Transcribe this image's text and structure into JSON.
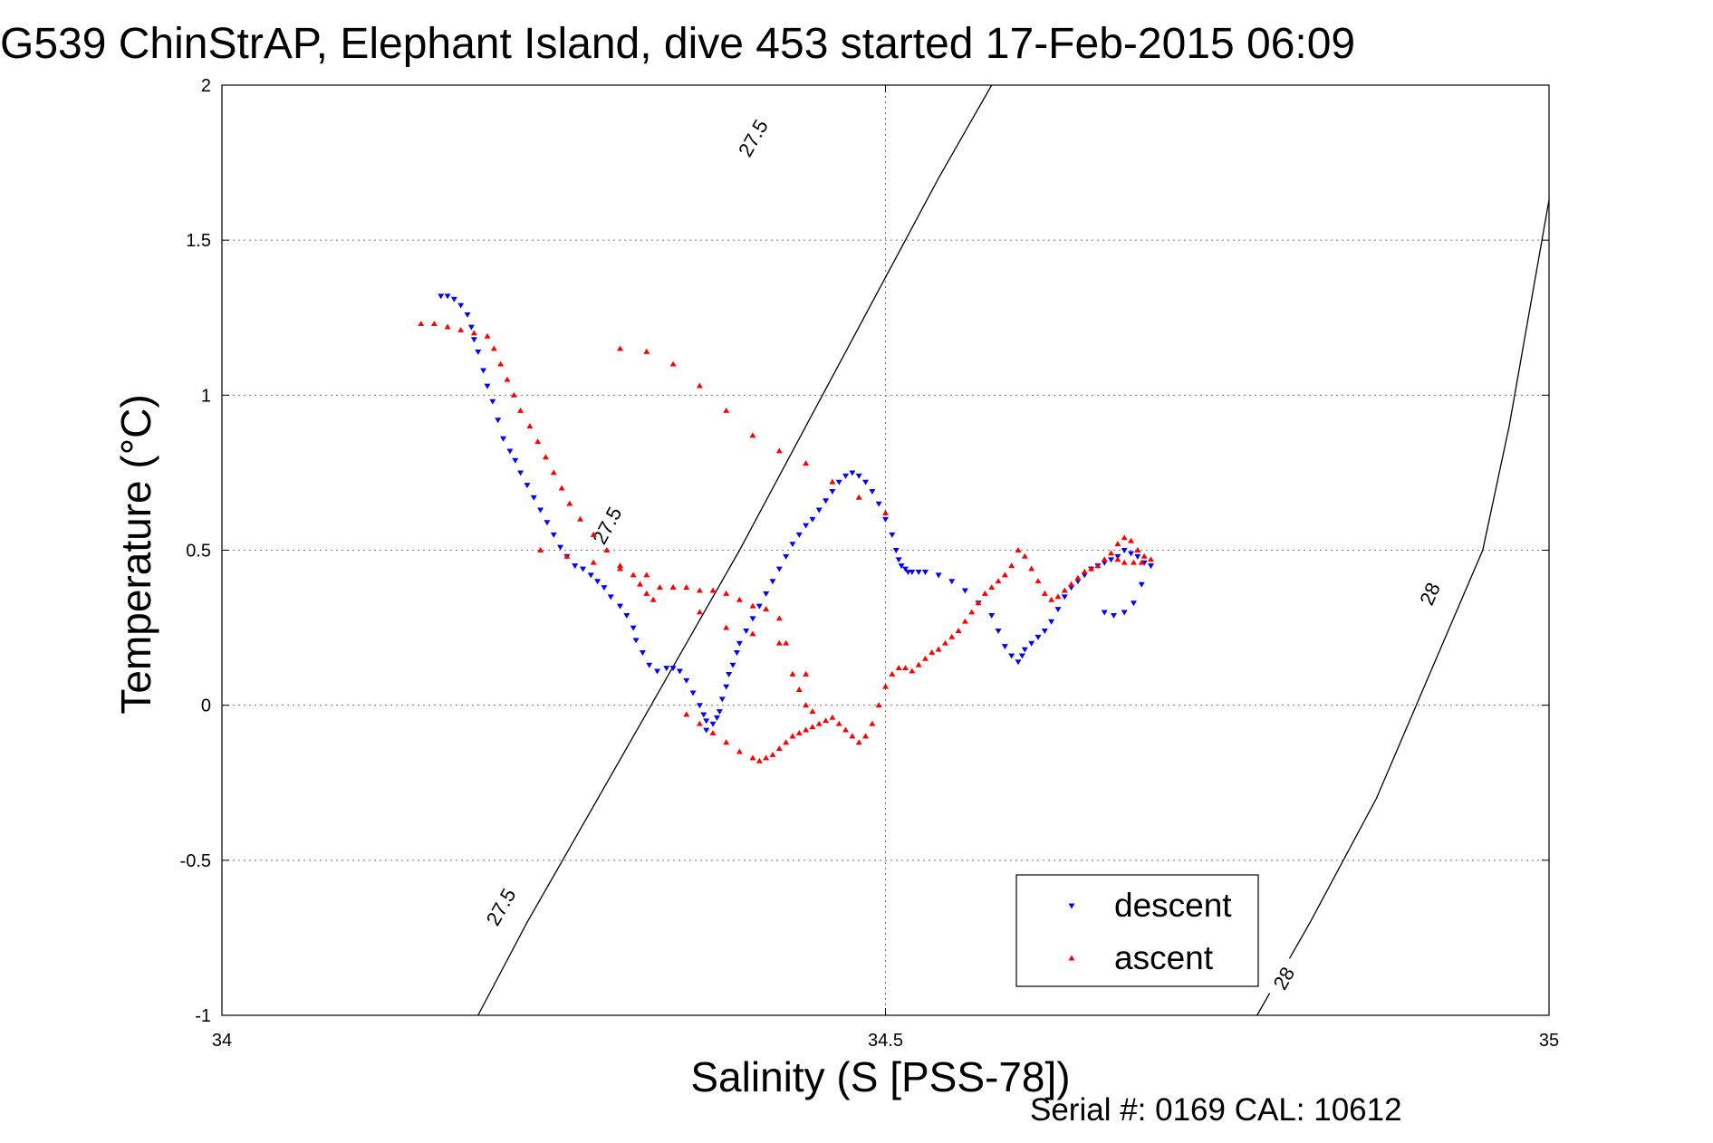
{
  "figure": {
    "title": "G539 ChinStrAP, Elephant Island, dive 453 started 17-Feb-2015 06:09",
    "footer": "Serial #: 0169 CAL: 10612"
  },
  "chart_data": {
    "type": "scatter",
    "xlabel": "Salinity (S [PSS-78])",
    "ylabel": "Temperature (°C)",
    "xlim": [
      34,
      35
    ],
    "ylim": [
      -1,
      2
    ],
    "xticks": [
      "34",
      "34.5",
      "35"
    ],
    "yticks": [
      "-1",
      "-0.5",
      "0",
      "0.5",
      "1",
      "1.5",
      "2"
    ],
    "grid": true,
    "legend_position": "bottom-right",
    "colors": {
      "descent": "#0000ff",
      "ascent": "#ff0000",
      "contour": "#000000"
    },
    "density_contours": [
      {
        "label": "27.5",
        "points": [
          [
            34.193,
            -1.0
          ],
          [
            34.23,
            -0.7
          ],
          [
            34.27,
            -0.4
          ],
          [
            34.31,
            -0.1
          ],
          [
            34.35,
            0.2
          ],
          [
            34.39,
            0.5
          ],
          [
            34.44,
            0.9
          ],
          [
            34.49,
            1.3
          ],
          [
            34.54,
            1.7
          ],
          [
            34.58,
            2.0
          ]
        ],
        "label_positions": [
          [
            34.21,
            -0.65
          ],
          [
            34.29,
            0.58
          ],
          [
            34.4,
            1.83
          ]
        ]
      },
      {
        "label": "28",
        "points": [
          [
            34.78,
            -1.0
          ],
          [
            34.82,
            -0.7
          ],
          [
            34.87,
            -0.3
          ],
          [
            34.91,
            0.1
          ],
          [
            34.95,
            0.5
          ],
          [
            34.97,
            0.9
          ],
          [
            35.0,
            1.63
          ]
        ],
        "label_positions": [
          [
            34.8,
            -0.88
          ],
          [
            34.91,
            0.36
          ]
        ]
      }
    ],
    "series": [
      {
        "name": "descent",
        "marker": "triangle-down",
        "x": [
          34.165,
          34.17,
          34.175,
          34.18,
          34.185,
          34.188,
          34.19,
          34.193,
          34.197,
          34.2,
          34.204,
          34.208,
          34.212,
          34.217,
          34.221,
          34.225,
          34.23,
          34.235,
          34.24,
          34.245,
          34.25,
          34.255,
          34.26,
          34.266,
          34.272,
          34.278,
          34.283,
          34.288,
          34.293,
          34.3,
          34.305,
          34.31,
          34.312,
          34.317,
          34.322,
          34.328,
          34.335,
          34.34,
          34.345,
          34.35,
          34.355,
          34.36,
          34.363,
          34.365,
          34.365,
          34.37,
          34.373,
          34.375,
          34.377,
          34.38,
          34.382,
          34.385,
          34.388,
          34.39,
          34.395,
          34.4,
          34.405,
          34.41,
          34.415,
          34.42,
          34.425,
          34.43,
          34.435,
          34.44,
          34.445,
          34.45,
          34.455,
          34.46,
          34.465,
          34.47,
          34.475,
          34.48,
          34.485,
          34.49,
          34.495,
          34.5,
          34.505,
          34.508,
          34.51,
          34.512,
          34.515,
          34.517,
          34.52,
          34.525,
          34.53,
          34.54,
          34.55,
          34.56,
          34.57,
          34.58,
          34.585,
          34.59,
          34.595,
          34.6,
          34.603,
          34.605,
          34.61,
          34.615,
          34.62,
          34.625,
          34.63,
          34.635,
          34.64,
          34.645,
          34.65,
          34.655,
          34.66,
          34.665,
          34.67,
          34.675,
          34.68,
          34.685,
          34.69,
          34.695,
          34.7,
          34.693,
          34.687,
          34.68,
          34.672,
          34.665
        ],
        "y": [
          1.32,
          1.32,
          1.31,
          1.29,
          1.26,
          1.22,
          1.18,
          1.14,
          1.08,
          1.03,
          0.98,
          0.92,
          0.86,
          0.82,
          0.79,
          0.75,
          0.71,
          0.67,
          0.63,
          0.59,
          0.55,
          0.51,
          0.48,
          0.45,
          0.44,
          0.42,
          0.4,
          0.38,
          0.35,
          0.32,
          0.29,
          0.25,
          0.21,
          0.17,
          0.13,
          0.11,
          0.12,
          0.12,
          0.11,
          0.08,
          0.04,
          0.0,
          -0.03,
          -0.05,
          -0.08,
          -0.06,
          -0.04,
          -0.02,
          0.02,
          0.06,
          0.1,
          0.13,
          0.17,
          0.2,
          0.24,
          0.28,
          0.32,
          0.36,
          0.4,
          0.44,
          0.48,
          0.52,
          0.55,
          0.58,
          0.6,
          0.63,
          0.66,
          0.69,
          0.72,
          0.74,
          0.75,
          0.74,
          0.72,
          0.69,
          0.65,
          0.6,
          0.55,
          0.5,
          0.47,
          0.45,
          0.44,
          0.43,
          0.43,
          0.43,
          0.43,
          0.42,
          0.4,
          0.37,
          0.33,
          0.29,
          0.24,
          0.19,
          0.16,
          0.14,
          0.16,
          0.18,
          0.2,
          0.22,
          0.24,
          0.27,
          0.31,
          0.35,
          0.38,
          0.4,
          0.42,
          0.44,
          0.45,
          0.46,
          0.47,
          0.48,
          0.5,
          0.49,
          0.48,
          0.46,
          0.45,
          0.39,
          0.33,
          0.3,
          0.29,
          0.3
        ]
      },
      {
        "name": "ascent",
        "marker": "triangle-up",
        "x": [
          34.15,
          34.16,
          34.17,
          34.18,
          34.19,
          34.2,
          34.205,
          34.21,
          34.215,
          34.22,
          34.225,
          34.232,
          34.238,
          34.244,
          34.25,
          34.256,
          34.262,
          34.27,
          34.28,
          34.29,
          34.3,
          34.31,
          34.315,
          34.32,
          34.325,
          34.33,
          34.34,
          34.35,
          34.36,
          34.37,
          34.38,
          34.39,
          34.4,
          34.41,
          34.42,
          34.425,
          34.43,
          34.435,
          34.44,
          34.445,
          34.35,
          34.36,
          34.37,
          34.38,
          34.39,
          34.4,
          34.405,
          34.41,
          34.415,
          34.42,
          34.425,
          34.43,
          34.435,
          34.44,
          34.445,
          34.45,
          34.455,
          34.46,
          34.465,
          34.47,
          34.475,
          34.48,
          34.485,
          34.49,
          34.495,
          34.5,
          34.505,
          34.51,
          34.515,
          34.52,
          34.525,
          34.53,
          34.535,
          34.54,
          34.545,
          34.55,
          34.555,
          34.56,
          34.565,
          34.57,
          34.575,
          34.58,
          34.585,
          34.59,
          34.595,
          34.6,
          34.605,
          34.61,
          34.615,
          34.62,
          34.625,
          34.63,
          34.635,
          34.64,
          34.645,
          34.65,
          34.655,
          34.66,
          34.665,
          34.67,
          34.675,
          34.68,
          34.685,
          34.69,
          34.695,
          34.7,
          34.693,
          34.687,
          34.68,
          34.675,
          34.3,
          34.32,
          34.34,
          34.36,
          34.38,
          34.4,
          34.42,
          34.44,
          34.46,
          34.48,
          34.5,
          34.24,
          34.26,
          34.28,
          34.3,
          34.32,
          34.34,
          34.36,
          34.38,
          34.4,
          34.42,
          34.44
        ],
        "y": [
          1.23,
          1.23,
          1.22,
          1.21,
          1.2,
          1.19,
          1.15,
          1.1,
          1.05,
          1.0,
          0.95,
          0.9,
          0.85,
          0.8,
          0.75,
          0.7,
          0.65,
          0.6,
          0.55,
          0.5,
          0.45,
          0.42,
          0.39,
          0.36,
          0.34,
          0.38,
          0.38,
          0.38,
          0.37,
          0.37,
          0.36,
          0.34,
          0.32,
          0.31,
          0.28,
          0.2,
          0.1,
          0.05,
          0.0,
          -0.02,
          -0.03,
          -0.06,
          -0.09,
          -0.12,
          -0.15,
          -0.17,
          -0.18,
          -0.17,
          -0.16,
          -0.14,
          -0.12,
          -0.1,
          -0.09,
          -0.08,
          -0.07,
          -0.06,
          -0.05,
          -0.04,
          -0.06,
          -0.08,
          -0.1,
          -0.12,
          -0.1,
          -0.06,
          0.0,
          0.06,
          0.1,
          0.12,
          0.12,
          0.11,
          0.13,
          0.15,
          0.17,
          0.18,
          0.2,
          0.22,
          0.24,
          0.27,
          0.3,
          0.33,
          0.36,
          0.38,
          0.4,
          0.42,
          0.45,
          0.5,
          0.48,
          0.44,
          0.4,
          0.36,
          0.34,
          0.35,
          0.37,
          0.39,
          0.41,
          0.43,
          0.44,
          0.45,
          0.47,
          0.49,
          0.52,
          0.54,
          0.53,
          0.5,
          0.48,
          0.47,
          0.46,
          0.46,
          0.46,
          0.47,
          1.15,
          1.14,
          1.1,
          1.03,
          0.95,
          0.87,
          0.82,
          0.78,
          0.72,
          0.67,
          0.62,
          0.5,
          0.48,
          0.46,
          0.44,
          0.42,
          0.38,
          0.3,
          0.25,
          0.23,
          0.2,
          0.1
        ]
      }
    ]
  }
}
